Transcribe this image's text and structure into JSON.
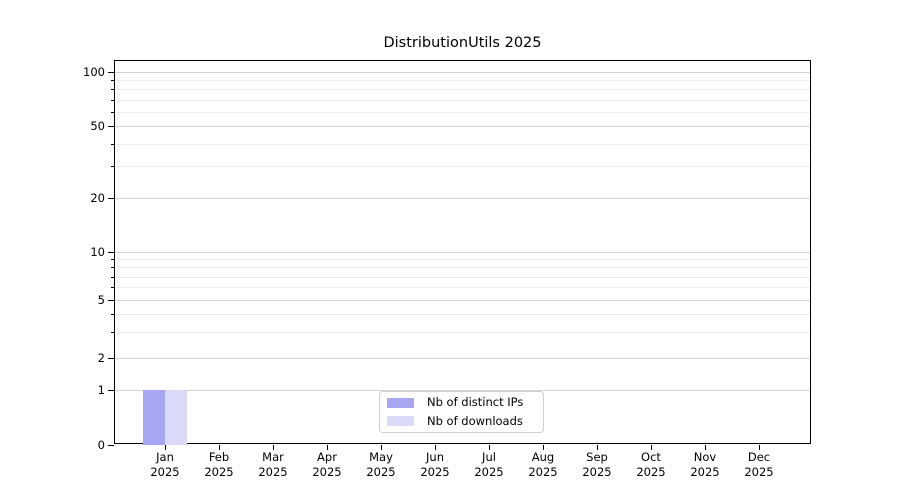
{
  "chart_data": {
    "type": "bar",
    "title": "DistributionUtils 2025",
    "x_tick_months": [
      "Jan",
      "Feb",
      "Mar",
      "Apr",
      "May",
      "Jun",
      "Jul",
      "Aug",
      "Sep",
      "Oct",
      "Nov",
      "Dec"
    ],
    "x_tick_year": "2025",
    "y_major_ticks": [
      0,
      1,
      2,
      5,
      10,
      20,
      50,
      100
    ],
    "y_minor_ticks": [
      3,
      4,
      6,
      7,
      8,
      9,
      30,
      40,
      60,
      70,
      80,
      90
    ],
    "yscale": "symlog",
    "ylim": [
      0,
      115
    ],
    "grid": "horizontal-major-and-minor",
    "legend_position": "lower-center-inside",
    "series": [
      {
        "name": "Nb of distinct IPs",
        "color": "#a6a6f2",
        "values": [
          1,
          0,
          0,
          0,
          0,
          0,
          0,
          0,
          0,
          0,
          0,
          0
        ]
      },
      {
        "name": "Nb of downloads",
        "color": "#dadaf8",
        "values": [
          1,
          0,
          0,
          0,
          0,
          0,
          0,
          0,
          0,
          0,
          0,
          0
        ]
      }
    ]
  },
  "colors": {
    "major_grid": "#d2d2d2",
    "minor_grid": "#ededed",
    "spine": "#000000",
    "legend_border": "#d0d0d0",
    "background": "#ffffff"
  }
}
